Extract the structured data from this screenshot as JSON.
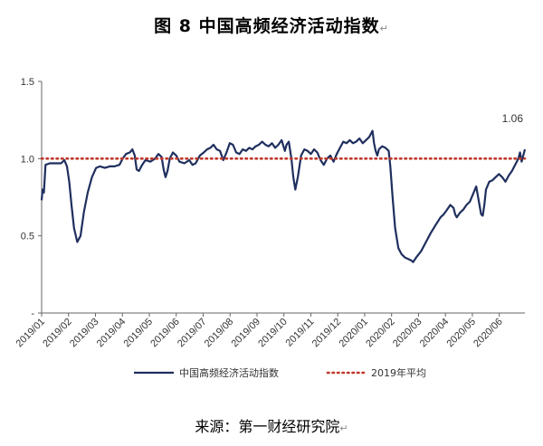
{
  "figure": {
    "title": "图 8  中国高频经济活动指数",
    "paragraph_mark": "↵",
    "source": "来源：第一财经研究院"
  },
  "chart_data": {
    "type": "line",
    "title": "图 8  中国高频经济活动指数",
    "xlabel": "",
    "ylabel": "",
    "ylim": [
      0,
      1.5
    ],
    "yticks": [
      "-",
      "0.5",
      "1.0",
      "1.5"
    ],
    "xticks": [
      "2019/01",
      "2019/02",
      "2019/03",
      "2019/04",
      "2019/05",
      "2019/06",
      "2019/07",
      "2019/08",
      "2019/09",
      "2019/10",
      "2019/11",
      "2019/12",
      "2020/01",
      "2020/02",
      "2020/03",
      "2020/04",
      "2020/05",
      "2020/06"
    ],
    "grid": false,
    "legend_position": "bottom",
    "annotation": "1.06",
    "series": [
      {
        "name": "中国高频经济活动指数",
        "style": "solid",
        "color": "#1f2f5e",
        "points": [
          [
            0.0,
            0.73
          ],
          [
            0.03,
            0.8
          ],
          [
            0.07,
            0.78
          ],
          [
            0.12,
            0.96
          ],
          [
            0.25,
            0.97
          ],
          [
            0.45,
            0.97
          ],
          [
            0.6,
            0.97
          ],
          [
            0.7,
            0.99
          ],
          [
            0.78,
            0.95
          ],
          [
            0.85,
            0.85
          ],
          [
            0.92,
            0.7
          ],
          [
            1.0,
            0.55
          ],
          [
            1.1,
            0.46
          ],
          [
            1.2,
            0.5
          ],
          [
            1.3,
            0.65
          ],
          [
            1.42,
            0.78
          ],
          [
            1.55,
            0.88
          ],
          [
            1.68,
            0.94
          ],
          [
            1.8,
            0.95
          ],
          [
            1.95,
            0.94
          ],
          [
            2.1,
            0.95
          ],
          [
            2.25,
            0.95
          ],
          [
            2.4,
            0.96
          ],
          [
            2.5,
            1.0
          ],
          [
            2.6,
            1.03
          ],
          [
            2.72,
            1.04
          ],
          [
            2.8,
            1.06
          ],
          [
            2.87,
            1.02
          ],
          [
            2.93,
            0.93
          ],
          [
            3.0,
            0.92
          ],
          [
            3.1,
            0.96
          ],
          [
            3.2,
            0.99
          ],
          [
            3.35,
            0.98
          ],
          [
            3.5,
            1.0
          ],
          [
            3.6,
            1.03
          ],
          [
            3.7,
            1.01
          ],
          [
            3.76,
            0.93
          ],
          [
            3.82,
            0.88
          ],
          [
            3.88,
            0.92
          ],
          [
            3.95,
            1.0
          ],
          [
            4.05,
            1.04
          ],
          [
            4.15,
            1.02
          ],
          [
            4.25,
            0.98
          ],
          [
            4.4,
            0.97
          ],
          [
            4.55,
            0.99
          ],
          [
            4.65,
            0.96
          ],
          [
            4.75,
            0.97
          ],
          [
            4.88,
            1.02
          ],
          [
            5.0,
            1.04
          ],
          [
            5.1,
            1.06
          ],
          [
            5.2,
            1.07
          ],
          [
            5.3,
            1.09
          ],
          [
            5.4,
            1.06
          ],
          [
            5.5,
            1.05
          ],
          [
            5.6,
            0.99
          ],
          [
            5.7,
            1.04
          ],
          [
            5.8,
            1.1
          ],
          [
            5.9,
            1.09
          ],
          [
            6.0,
            1.04
          ],
          [
            6.1,
            1.03
          ],
          [
            6.2,
            1.06
          ],
          [
            6.3,
            1.05
          ],
          [
            6.4,
            1.07
          ],
          [
            6.5,
            1.06
          ],
          [
            6.6,
            1.08
          ],
          [
            6.7,
            1.09
          ],
          [
            6.8,
            1.11
          ],
          [
            6.9,
            1.09
          ],
          [
            7.0,
            1.08
          ],
          [
            7.1,
            1.1
          ],
          [
            7.2,
            1.07
          ],
          [
            7.3,
            1.09
          ],
          [
            7.4,
            1.12
          ],
          [
            7.5,
            1.05
          ],
          [
            7.55,
            1.09
          ],
          [
            7.62,
            1.11
          ],
          [
            7.7,
            1.0
          ],
          [
            7.76,
            0.88
          ],
          [
            7.82,
            0.8
          ],
          [
            7.9,
            0.88
          ],
          [
            8.0,
            1.02
          ],
          [
            8.1,
            1.06
          ],
          [
            8.2,
            1.05
          ],
          [
            8.3,
            1.03
          ],
          [
            8.4,
            1.06
          ],
          [
            8.5,
            1.04
          ],
          [
            8.6,
            0.99
          ],
          [
            8.7,
            0.96
          ],
          [
            8.8,
            1.0
          ],
          [
            8.9,
            1.02
          ],
          [
            9.0,
            0.98
          ],
          [
            9.1,
            1.03
          ],
          [
            9.2,
            1.07
          ],
          [
            9.3,
            1.11
          ],
          [
            9.4,
            1.1
          ],
          [
            9.5,
            1.12
          ],
          [
            9.6,
            1.1
          ],
          [
            9.7,
            1.11
          ],
          [
            9.8,
            1.13
          ],
          [
            9.9,
            1.1
          ],
          [
            10.0,
            1.12
          ],
          [
            10.1,
            1.14
          ],
          [
            10.2,
            1.18
          ],
          [
            10.25,
            1.1
          ],
          [
            10.3,
            1.05
          ],
          [
            10.35,
            1.02
          ],
          [
            10.4,
            1.06
          ],
          [
            10.5,
            1.08
          ],
          [
            10.6,
            1.07
          ],
          [
            10.7,
            1.05
          ],
          [
            10.75,
            0.95
          ],
          [
            10.82,
            0.75
          ],
          [
            10.9,
            0.55
          ],
          [
            11.0,
            0.42
          ],
          [
            11.1,
            0.38
          ],
          [
            11.2,
            0.36
          ],
          [
            11.3,
            0.35
          ],
          [
            11.4,
            0.34
          ],
          [
            11.45,
            0.33
          ],
          [
            11.55,
            0.36
          ],
          [
            11.7,
            0.4
          ],
          [
            11.85,
            0.46
          ],
          [
            12.0,
            0.52
          ],
          [
            12.15,
            0.57
          ],
          [
            12.3,
            0.62
          ],
          [
            12.4,
            0.64
          ],
          [
            12.5,
            0.67
          ],
          [
            12.6,
            0.7
          ],
          [
            12.7,
            0.68
          ],
          [
            12.75,
            0.64
          ],
          [
            12.8,
            0.62
          ],
          [
            12.9,
            0.65
          ],
          [
            13.0,
            0.67
          ],
          [
            13.1,
            0.7
          ],
          [
            13.2,
            0.72
          ],
          [
            13.3,
            0.77
          ],
          [
            13.4,
            0.82
          ],
          [
            13.5,
            0.7
          ],
          [
            13.55,
            0.64
          ],
          [
            13.6,
            0.63
          ],
          [
            13.65,
            0.7
          ],
          [
            13.7,
            0.8
          ],
          [
            13.8,
            0.85
          ],
          [
            13.9,
            0.86
          ],
          [
            14.0,
            0.88
          ],
          [
            14.1,
            0.9
          ],
          [
            14.2,
            0.88
          ],
          [
            14.3,
            0.85
          ],
          [
            14.4,
            0.89
          ],
          [
            14.5,
            0.92
          ],
          [
            14.6,
            0.96
          ],
          [
            14.7,
            1.0
          ],
          [
            14.75,
            1.04
          ],
          [
            14.8,
            0.98
          ],
          [
            14.85,
            1.02
          ],
          [
            14.9,
            1.06
          ]
        ]
      },
      {
        "name": "2019年平均",
        "style": "dotted",
        "color": "#c0392b",
        "points": [
          [
            0.0,
            1.0
          ],
          [
            14.9,
            1.0
          ]
        ]
      }
    ]
  }
}
